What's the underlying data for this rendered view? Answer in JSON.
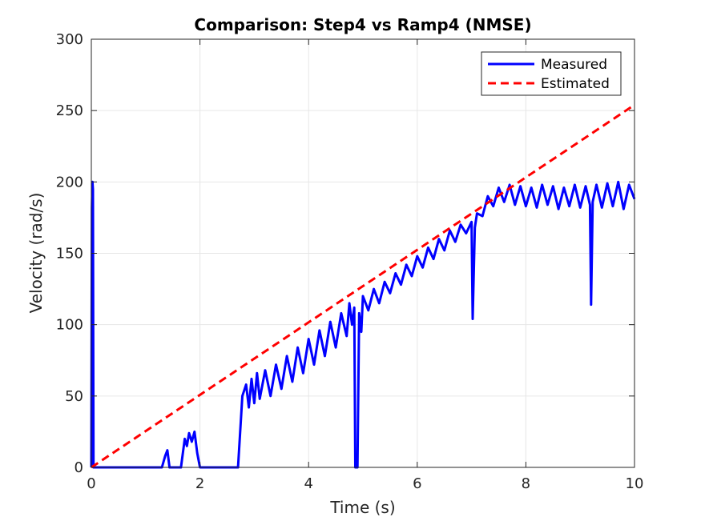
{
  "chart_data": {
    "type": "line",
    "title": "Comparison: Step4 vs Ramp4 (NMSE)",
    "xlabel": "Time (s)",
    "ylabel": "Velocity (rad/s)",
    "xlim": [
      0,
      10
    ],
    "ylim": [
      0,
      300
    ],
    "xticks": [
      0,
      2,
      4,
      6,
      8,
      10
    ],
    "yticks": [
      0,
      50,
      100,
      150,
      200,
      250,
      300
    ],
    "grid": true,
    "legend_position": "top-right",
    "series": [
      {
        "name": "Measured",
        "color": "#0000ff",
        "style": "solid",
        "points": [
          [
            0.0,
            0
          ],
          [
            0.01,
            182
          ],
          [
            0.02,
            200
          ],
          [
            0.03,
            195
          ],
          [
            0.04,
            0
          ],
          [
            0.05,
            0
          ],
          [
            1.3,
            0
          ],
          [
            1.36,
            8
          ],
          [
            1.4,
            12
          ],
          [
            1.44,
            0
          ],
          [
            1.65,
            0
          ],
          [
            1.72,
            20
          ],
          [
            1.76,
            15
          ],
          [
            1.8,
            24
          ],
          [
            1.85,
            18
          ],
          [
            1.9,
            25
          ],
          [
            1.95,
            10
          ],
          [
            2.0,
            0
          ],
          [
            2.7,
            0
          ],
          [
            2.78,
            50
          ],
          [
            2.85,
            58
          ],
          [
            2.9,
            42
          ],
          [
            2.95,
            62
          ],
          [
            3.0,
            45
          ],
          [
            3.05,
            66
          ],
          [
            3.1,
            48
          ],
          [
            3.2,
            68
          ],
          [
            3.3,
            50
          ],
          [
            3.4,
            72
          ],
          [
            3.5,
            55
          ],
          [
            3.6,
            78
          ],
          [
            3.7,
            60
          ],
          [
            3.8,
            84
          ],
          [
            3.9,
            66
          ],
          [
            4.0,
            90
          ],
          [
            4.1,
            72
          ],
          [
            4.2,
            96
          ],
          [
            4.3,
            78
          ],
          [
            4.4,
            102
          ],
          [
            4.5,
            84
          ],
          [
            4.6,
            108
          ],
          [
            4.7,
            92
          ],
          [
            4.75,
            115
          ],
          [
            4.8,
            100
          ],
          [
            4.84,
            112
          ],
          [
            4.86,
            0
          ],
          [
            4.9,
            0
          ],
          [
            4.93,
            108
          ],
          [
            4.97,
            95
          ],
          [
            5.0,
            120
          ],
          [
            5.1,
            110
          ],
          [
            5.2,
            125
          ],
          [
            5.3,
            115
          ],
          [
            5.4,
            130
          ],
          [
            5.5,
            122
          ],
          [
            5.6,
            136
          ],
          [
            5.7,
            128
          ],
          [
            5.8,
            142
          ],
          [
            5.9,
            134
          ],
          [
            6.0,
            148
          ],
          [
            6.1,
            140
          ],
          [
            6.2,
            154
          ],
          [
            6.3,
            146
          ],
          [
            6.4,
            160
          ],
          [
            6.5,
            152
          ],
          [
            6.6,
            166
          ],
          [
            6.7,
            158
          ],
          [
            6.8,
            170
          ],
          [
            6.9,
            164
          ],
          [
            7.0,
            172
          ],
          [
            7.02,
            104
          ],
          [
            7.06,
            168
          ],
          [
            7.1,
            178
          ],
          [
            7.2,
            176
          ],
          [
            7.3,
            190
          ],
          [
            7.4,
            183
          ],
          [
            7.5,
            196
          ],
          [
            7.6,
            186
          ],
          [
            7.7,
            198
          ],
          [
            7.8,
            184
          ],
          [
            7.9,
            197
          ],
          [
            8.0,
            183
          ],
          [
            8.1,
            196
          ],
          [
            8.2,
            182
          ],
          [
            8.3,
            198
          ],
          [
            8.4,
            184
          ],
          [
            8.5,
            197
          ],
          [
            8.6,
            181
          ],
          [
            8.7,
            196
          ],
          [
            8.8,
            183
          ],
          [
            8.9,
            198
          ],
          [
            9.0,
            182
          ],
          [
            9.1,
            197
          ],
          [
            9.18,
            184
          ],
          [
            9.2,
            114
          ],
          [
            9.23,
            186
          ],
          [
            9.3,
            198
          ],
          [
            9.4,
            182
          ],
          [
            9.5,
            199
          ],
          [
            9.6,
            183
          ],
          [
            9.7,
            200
          ],
          [
            9.8,
            181
          ],
          [
            9.9,
            198
          ],
          [
            10.0,
            188
          ]
        ]
      },
      {
        "name": "Estimated",
        "color": "#ff0000",
        "style": "dashed",
        "points": [
          [
            0,
            0
          ],
          [
            10,
            254
          ]
        ]
      }
    ]
  }
}
